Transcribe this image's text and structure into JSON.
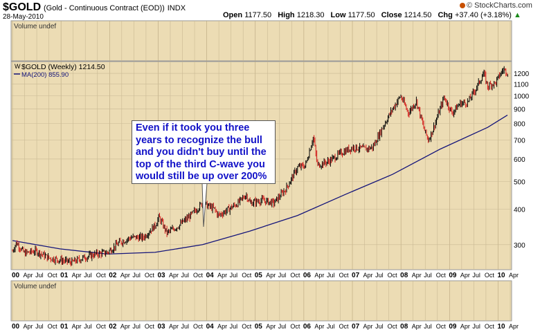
{
  "header": {
    "symbol": "$GOLD",
    "description": "(Gold - Continuous Contract (EOD))",
    "exchange": "INDX",
    "date": "28-May-2010",
    "quote": {
      "open_label": "Open",
      "open": "1177.50",
      "high_label": "High",
      "high": "1218.30",
      "low_label": "Low",
      "low": "1177.50",
      "close_label": "Close",
      "close": "1214.50",
      "chg_label": "Chg",
      "chg": "+37.40 (+3.18%)"
    },
    "logo": "© StockCharts.com"
  },
  "panels": {
    "volume_top_label": "Volume undef",
    "volume_bottom_label": "Volume undef",
    "legend_price": "$GOLD (Weekly) 1214.50",
    "legend_ma": "MA(200) 855.90"
  },
  "annotation": {
    "lines": [
      "Even if it took you three",
      "years to recognize the bull",
      "and you didn't buy until the",
      "top of the third C-wave you",
      "would still be up over 200%"
    ]
  },
  "colors": {
    "panel_bg": "#ecdcb4",
    "grid": "#c9b994",
    "price_up": "#000000",
    "price_down": "#d21414",
    "ma_line": "#14147a",
    "annotation_text": "#1212c8"
  },
  "chart_data": {
    "type": "line",
    "title": "$GOLD (Gold - Continuous Contract (EOD)) INDX",
    "y_scale": "log",
    "ylim": [
      245,
      1320
    ],
    "y_ticks": [
      300,
      400,
      500,
      600,
      700,
      800,
      900,
      1000,
      1100,
      1200
    ],
    "x_ticks": [
      "00",
      "Apr",
      "Jul",
      "Oct",
      "01",
      "Apr",
      "Jul",
      "Oct",
      "02",
      "Apr",
      "Jul",
      "Oct",
      "03",
      "Apr",
      "Jul",
      "Oct",
      "04",
      "Apr",
      "Jul",
      "Oct",
      "05",
      "Apr",
      "Jul",
      "Oct",
      "06",
      "Apr",
      "Jul",
      "Oct",
      "07",
      "Apr",
      "Jul",
      "Oct",
      "08",
      "Apr",
      "Jul",
      "Oct",
      "09",
      "Apr",
      "Jul",
      "Oct",
      "10",
      "Apr"
    ],
    "x_range": [
      "2000-01",
      "2010-06"
    ],
    "grid": true,
    "legend_position": "top-left",
    "series": [
      {
        "name": "$GOLD (Weekly)",
        "points": [
          [
            "2000-01",
            285
          ],
          [
            "2000-02",
            305
          ],
          [
            "2000-04",
            280
          ],
          [
            "2000-07",
            285
          ],
          [
            "2000-10",
            270
          ],
          [
            "2001-01",
            265
          ],
          [
            "2001-04",
            260
          ],
          [
            "2001-07",
            270
          ],
          [
            "2001-10",
            278
          ],
          [
            "2002-01",
            282
          ],
          [
            "2002-04",
            305
          ],
          [
            "2002-07",
            318
          ],
          [
            "2002-10",
            318
          ],
          [
            "2003-01",
            350
          ],
          [
            "2003-02",
            375
          ],
          [
            "2003-04",
            330
          ],
          [
            "2003-07",
            350
          ],
          [
            "2003-10",
            380
          ],
          [
            "2004-01",
            420
          ],
          [
            "2004-04",
            400
          ],
          [
            "2004-05",
            380
          ],
          [
            "2004-07",
            395
          ],
          [
            "2004-10",
            420
          ],
          [
            "2004-12",
            450
          ],
          [
            "2005-01",
            420
          ],
          [
            "2005-04",
            430
          ],
          [
            "2005-07",
            420
          ],
          [
            "2005-10",
            470
          ],
          [
            "2006-01",
            560
          ],
          [
            "2006-03",
            570
          ],
          [
            "2006-05",
            720
          ],
          [
            "2006-06",
            570
          ],
          [
            "2006-09",
            590
          ],
          [
            "2006-12",
            630
          ],
          [
            "2007-03",
            660
          ],
          [
            "2007-06",
            650
          ],
          [
            "2007-08",
            660
          ],
          [
            "2007-11",
            800
          ],
          [
            "2008-01",
            900
          ],
          [
            "2008-03",
            1000
          ],
          [
            "2008-05",
            870
          ],
          [
            "2008-07",
            960
          ],
          [
            "2008-09",
            760
          ],
          [
            "2008-10",
            700
          ],
          [
            "2008-11",
            750
          ],
          [
            "2009-01",
            900
          ],
          [
            "2009-02",
            990
          ],
          [
            "2009-04",
            870
          ],
          [
            "2009-06",
            940
          ],
          [
            "2009-08",
            950
          ],
          [
            "2009-10",
            1060
          ],
          [
            "2009-12",
            1200
          ],
          [
            "2010-01",
            1080
          ],
          [
            "2010-02",
            1100
          ],
          [
            "2010-03",
            1110
          ],
          [
            "2010-04",
            1180
          ],
          [
            "2010-05",
            1240
          ],
          [
            "2010-06",
            1214
          ]
        ]
      },
      {
        "name": "MA(200)",
        "points": [
          [
            "2000-01",
            310
          ],
          [
            "2001-01",
            290
          ],
          [
            "2002-01",
            278
          ],
          [
            "2003-01",
            282
          ],
          [
            "2004-01",
            300
          ],
          [
            "2005-01",
            335
          ],
          [
            "2006-01",
            380
          ],
          [
            "2007-01",
            450
          ],
          [
            "2008-01",
            530
          ],
          [
            "2009-01",
            650
          ],
          [
            "2010-01",
            775
          ],
          [
            "2010-06",
            856
          ]
        ]
      }
    ]
  }
}
